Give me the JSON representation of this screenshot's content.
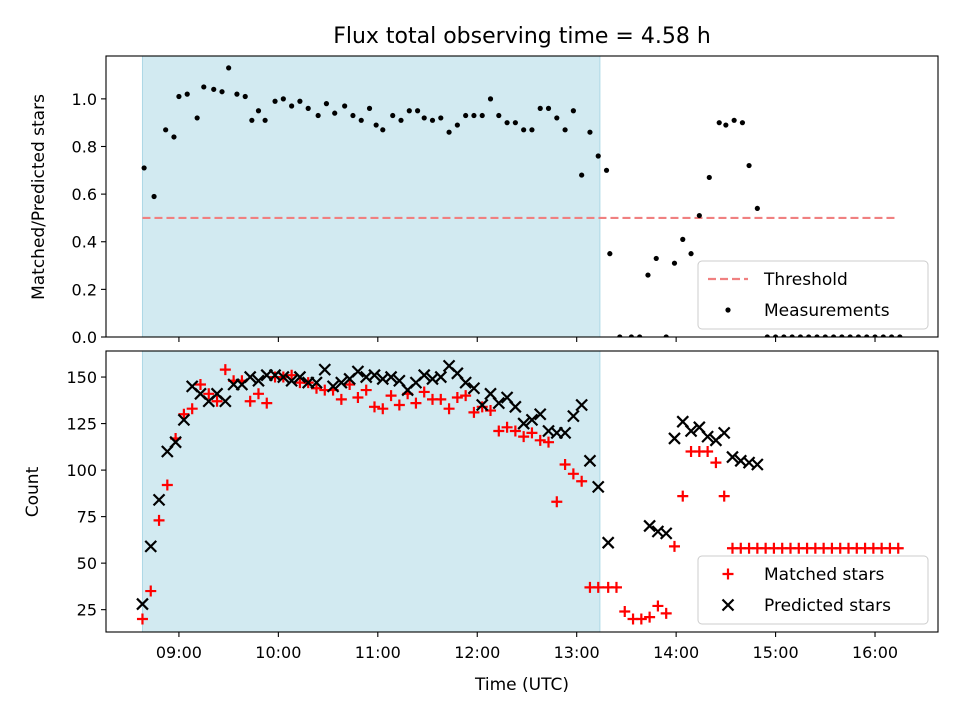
{
  "chart_data": {
    "title": "Flux total observing time = 4.58 h",
    "xlabel": "Time (UTC)",
    "x_ticks": [
      "09:00",
      "10:00",
      "11:00",
      "12:00",
      "13:00",
      "14:00",
      "15:00",
      "16:00"
    ],
    "x_range": [
      "08:16",
      "16:38"
    ],
    "shaded_interval": [
      "08:38",
      "13:14"
    ],
    "shade_color": "#add8e6",
    "panels": [
      {
        "type": "scatter",
        "ylabel": "Matched/Predicted stars",
        "ylim": [
          0.0,
          1.18
        ],
        "y_ticks": [
          "0.0",
          "0.2",
          "0.4",
          "0.6",
          "0.8",
          "1.0"
        ],
        "legend_position": "bottom-right",
        "series": [
          {
            "name": "Threshold",
            "kind": "line",
            "style": "dashed",
            "color": "#f08080",
            "x": [
              "08:38",
              "16:12"
            ],
            "y": [
              0.5,
              0.5
            ]
          },
          {
            "name": "Measurements",
            "kind": "scatter",
            "marker": "dot",
            "color": "#000000",
            "x": [
              "08:39",
              "08:43",
              "08:48",
              "08:54",
              "08:59",
              "09:03",
              "09:09",
              "09:14",
              "09:18",
              "09:23",
              "09:29",
              "09:34",
              "09:39",
              "09:44",
              "09:49",
              "09:53",
              "09:59",
              "10:04",
              "10:09",
              "10:14",
              "10:19",
              "10:24",
              "10:29",
              "10:34",
              "10:39",
              "10:44",
              "10:49",
              "10:54",
              "10:59",
              "11:04",
              "11:09",
              "11:14",
              "11:19",
              "11:24",
              "11:29",
              "11:34",
              "11:39",
              "11:44",
              "11:49",
              "11:54",
              "11:59",
              "12:04",
              "12:09",
              "12:14",
              "12:19",
              "12:24",
              "12:29",
              "12:34",
              "12:39",
              "12:44",
              "12:49",
              "12:54",
              "12:59",
              "13:04",
              "13:09",
              "13:14",
              "13:19",
              "13:24",
              "13:29",
              "13:34",
              "13:39",
              "13:44",
              "13:49",
              "13:54",
              "13:59",
              "14:04",
              "14:09",
              "14:14",
              "14:19",
              "14:24",
              "14:29",
              "14:34",
              "14:39",
              "14:44",
              "14:49",
              "14:54",
              "14:59",
              "15:04",
              "15:09",
              "15:14",
              "15:19",
              "15:24",
              "15:29",
              "15:34",
              "15:39",
              "15:44",
              "15:49",
              "15:54",
              "15:59",
              "16:04",
              "16:09",
              "16:14"
            ],
            "y": [
              0.71,
              0.59,
              0.87,
              0.84,
              1.01,
              1.02,
              0.92,
              1.05,
              1.04,
              1.03,
              1.13,
              1.02,
              1.01,
              0.91,
              0.95,
              0.91,
              0.99,
              1.0,
              0.97,
              0.99,
              0.96,
              0.93,
              0.98,
              0.94,
              0.97,
              0.93,
              0.91,
              0.96,
              0.89,
              0.87,
              0.93,
              0.91,
              0.95,
              0.95,
              0.92,
              0.91,
              0.92,
              0.86,
              0.89,
              0.93,
              0.93,
              0.93,
              1.0,
              0.93,
              0.9,
              0.9,
              0.87,
              0.87,
              0.96,
              0.96,
              0.92,
              0.87,
              0.95,
              0.68,
              0.86,
              0.76,
              0.7,
              0.35,
              0.0,
              0.0,
              0.0,
              0.26,
              0.33,
              0.0,
              0.31,
              0.41,
              0.35,
              0.51,
              0.67,
              0.9,
              0.89,
              0.91,
              0.9,
              0.72,
              0.54,
              0.0,
              0.0,
              0.0,
              0.0,
              0.0,
              0.0,
              0.0,
              0.0,
              0.0,
              0.0,
              0.0,
              0.0,
              0.0,
              0.0,
              0.0,
              0.0,
              0.0
            ],
            "x_override": [
              "08:39",
              "08:45",
              "08:52",
              "08:57",
              "09:00",
              "09:05",
              "09:11",
              "09:15",
              "09:21",
              "09:26",
              "09:30",
              "09:35",
              "09:40",
              "09:44",
              "09:48",
              "09:52",
              "09:58",
              "10:03",
              "10:08",
              "10:13",
              "10:18",
              "10:24",
              "10:29",
              "10:34",
              "10:40",
              "10:45",
              "10:50",
              "10:55",
              "10:59",
              "11:03",
              "11:09",
              "11:14",
              "11:19",
              "11:24",
              "11:28",
              "11:33",
              "11:38",
              "11:43",
              "11:48",
              "11:53",
              "11:58",
              "12:03",
              "12:08",
              "12:13",
              "12:18",
              "12:23",
              "12:28",
              "12:33",
              "12:38",
              "12:43",
              "12:48",
              "12:53",
              "12:58",
              "13:03",
              "13:08",
              "13:13",
              "13:18",
              "13:20",
              "13:26",
              "13:33",
              "13:38",
              "13:43",
              "13:48",
              "13:54",
              "13:59",
              "14:04",
              "14:09",
              "14:14",
              "14:20",
              "14:26",
              "14:30",
              "14:35",
              "14:40",
              "14:44",
              "14:49",
              "14:55",
              "15:00",
              "15:05",
              "15:10",
              "15:15",
              "15:20",
              "15:25",
              "15:30",
              "15:35",
              "15:40",
              "15:45",
              "15:50",
              "15:55",
              "16:00",
              "16:05",
              "16:10",
              "16:15"
            ]
          }
        ]
      },
      {
        "type": "scatter",
        "ylabel": "Count",
        "ylim": [
          13,
          164
        ],
        "y_ticks": [
          "25",
          "50",
          "75",
          "100",
          "125",
          "150"
        ],
        "legend_position": "bottom-right",
        "series": [
          {
            "name": "Matched stars",
            "kind": "scatter",
            "marker": "plus",
            "color": "#ff0000",
            "x": [
              "08:38",
              "08:43",
              "08:48",
              "08:53",
              "08:58",
              "09:03",
              "09:08",
              "09:13",
              "09:18",
              "09:23",
              "09:28",
              "09:33",
              "09:38",
              "09:43",
              "09:48",
              "09:53",
              "09:58",
              "10:03",
              "10:08",
              "10:13",
              "10:18",
              "10:23",
              "10:28",
              "10:33",
              "10:38",
              "10:43",
              "10:48",
              "10:53",
              "10:58",
              "11:03",
              "11:08",
              "11:13",
              "11:18",
              "11:23",
              "11:28",
              "11:33",
              "11:38",
              "11:43",
              "11:48",
              "11:53",
              "11:58",
              "12:03",
              "12:08",
              "12:13",
              "12:18",
              "12:23",
              "12:28",
              "12:33",
              "12:38",
              "12:43",
              "12:48",
              "12:53",
              "12:58",
              "13:03",
              "13:08",
              "13:13",
              "13:19",
              "13:24",
              "13:29",
              "13:34",
              "13:39",
              "13:44",
              "13:49",
              "13:54",
              "13:59",
              "14:04",
              "14:09",
              "14:14",
              "14:19",
              "14:24",
              "14:29",
              "14:34",
              "14:39",
              "14:44",
              "14:49",
              "14:54",
              "14:59",
              "15:04",
              "15:09",
              "15:14",
              "15:19",
              "15:24",
              "15:29",
              "15:34",
              "15:39",
              "15:44",
              "15:49",
              "15:54",
              "15:59",
              "16:04",
              "16:09",
              "16:14"
            ],
            "y": [
              20,
              35,
              73,
              92,
              117,
              130,
              133,
              146,
              141,
              137,
              154,
              148,
              148,
              137,
              141,
              136,
              150,
              150,
              151,
              147,
              147,
              144,
              143,
              143,
              138,
              146,
              139,
              143,
              134,
              133,
              140,
              135,
              141,
              136,
              142,
              138,
              138,
              133,
              139,
              140,
              131,
              134,
              132,
              121,
              123,
              121,
              118,
              120,
              116,
              115,
              83,
              103,
              98,
              94,
              37,
              37,
              37,
              37,
              24,
              20,
              20,
              21,
              27,
              23,
              59,
              86,
              110,
              110,
              110,
              104,
              86,
              58,
              58,
              58,
              58,
              58,
              58,
              58,
              58,
              58,
              58,
              58,
              58,
              58,
              58,
              58,
              58,
              58,
              58,
              58,
              58,
              58
            ]
          },
          {
            "name": "Predicted stars",
            "kind": "scatter",
            "marker": "x",
            "color": "#000000",
            "x": [
              "08:38",
              "08:43",
              "08:48",
              "08:53",
              "08:58",
              "09:03",
              "09:08",
              "09:13",
              "09:18",
              "09:23",
              "09:28",
              "09:33",
              "09:38",
              "09:43",
              "09:48",
              "09:53",
              "09:58",
              "10:03",
              "10:08",
              "10:13",
              "10:18",
              "10:23",
              "10:28",
              "10:33",
              "10:38",
              "10:43",
              "10:48",
              "10:53",
              "10:58",
              "11:03",
              "11:08",
              "11:13",
              "11:18",
              "11:23",
              "11:28",
              "11:33",
              "11:38",
              "11:43",
              "11:48",
              "11:53",
              "11:58",
              "12:03",
              "12:08",
              "12:13",
              "12:18",
              "12:23",
              "12:28",
              "12:33",
              "12:38",
              "12:43",
              "12:48",
              "12:53",
              "12:58",
              "13:03",
              "13:08",
              "13:13",
              "13:19",
              "13:44",
              "13:49",
              "13:54",
              "13:59",
              "14:04",
              "14:09",
              "14:14",
              "14:19",
              "14:24",
              "14:29",
              "14:34",
              "14:39",
              "14:44",
              "14:49"
            ],
            "y": [
              28,
              59,
              84,
              110,
              115,
              127,
              145,
              141,
              137,
              141,
              137,
              146,
              146,
              150,
              148,
              151,
              151,
              150,
              148,
              150,
              147,
              147,
              154,
              145,
              147,
              149,
              153,
              150,
              151,
              149,
              150,
              148,
              143,
              147,
              151,
              149,
              150,
              156,
              152,
              147,
              144,
              135,
              141,
              136,
              139,
              134,
              125,
              127,
              130,
              121,
              120,
              120,
              129,
              135,
              105,
              91,
              61,
              70,
              67,
              66,
              117,
              126,
              121,
              123,
              118,
              116,
              120,
              107,
              105,
              104,
              103
            ],
            "note_range": "plotted subset"
          }
        ]
      }
    ]
  }
}
